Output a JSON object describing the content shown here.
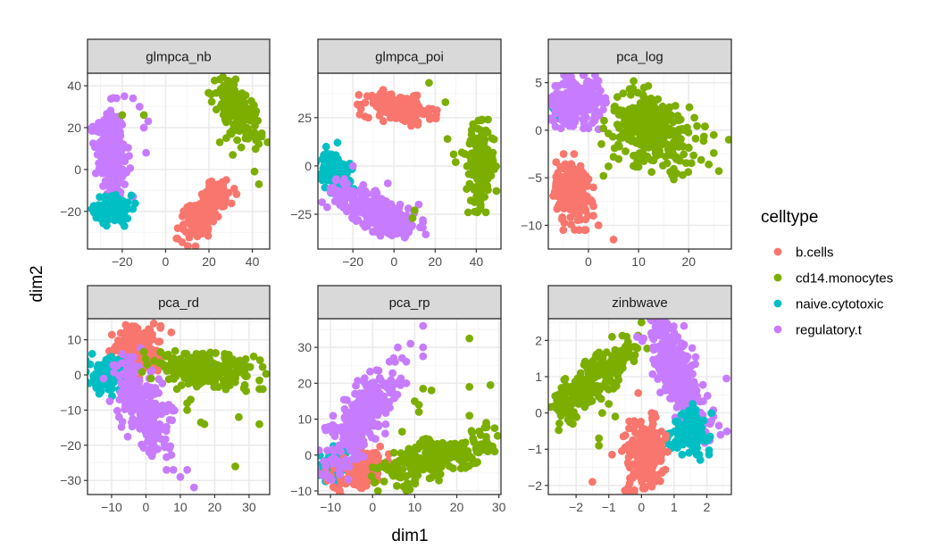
{
  "chart_data": {
    "type": "scatter",
    "layout": "facet-wrap 2x3",
    "xlabel": "dim1",
    "ylabel": "dim2",
    "legend": {
      "title": "celltype",
      "placement": "right",
      "entries": [
        {
          "label": "b.cells",
          "color": "#F8766D"
        },
        {
          "label": "cd14.monocytes",
          "color": "#7CAE00"
        },
        {
          "label": "naive.cytotoxic",
          "color": "#00BFC4"
        },
        {
          "label": "regulatory.t",
          "color": "#C77CFF"
        }
      ]
    },
    "grid": true,
    "panels": [
      {
        "title": "glmpca_nb",
        "xlim": [
          -36,
          48
        ],
        "ylim": [
          -38,
          46
        ],
        "xticks": [
          -20,
          0,
          20,
          40
        ],
        "yticks": [
          -20,
          0,
          20,
          40
        ],
        "clusters": [
          {
            "celltype": "regulatory.t",
            "center": [
              -25,
              8
            ],
            "spread": [
              4,
              13
            ],
            "angle": 5,
            "n": 260,
            "outliers": [
              [
                -15,
                34
              ],
              [
                -12,
                30
              ],
              [
                -8,
                23
              ],
              [
                -10,
                20
              ],
              [
                -9,
                8
              ],
              [
                -15,
                -13
              ],
              [
                -19,
                35
              ]
            ]
          },
          {
            "celltype": "naive.cytotoxic",
            "center": [
              -24,
              -19
            ],
            "spread": [
              5,
              4
            ],
            "angle": 0,
            "n": 90,
            "outliers": [
              [
                -19,
                -27
              ]
            ]
          },
          {
            "celltype": "b.cells",
            "center": [
              18,
              -20
            ],
            "spread": [
              4,
              9
            ],
            "angle": -35,
            "n": 200,
            "outliers": []
          },
          {
            "celltype": "cd14.monocytes",
            "center": [
              33,
              28
            ],
            "spread": [
              4,
              10
            ],
            "angle": 30,
            "n": 160,
            "outliers": [
              [
                25,
                13
              ],
              [
                28,
                15
              ],
              [
                31,
                7
              ],
              [
                33,
                14
              ],
              [
                41,
                -1
              ],
              [
                43,
                -7
              ],
              [
                -10,
                26
              ],
              [
                -20,
                26
              ]
            ]
          }
        ]
      },
      {
        "title": "glmpca_poi",
        "xlim": [
          -37,
          52
        ],
        "ylim": [
          -43,
          48
        ],
        "xticks": [
          -20,
          0,
          20,
          40
        ],
        "yticks": [
          -25,
          0,
          25
        ],
        "clusters": [
          {
            "celltype": "b.cells",
            "center": [
              2,
              30
            ],
            "spread": [
              10,
              4
            ],
            "angle": -10,
            "n": 180,
            "outliers": [
              [
                19,
                25
              ]
            ]
          },
          {
            "celltype": "naive.cytotoxic",
            "center": [
              -28,
              -3
            ],
            "spread": [
              4,
              7
            ],
            "angle": 20,
            "n": 100,
            "outliers": [
              [
                -33,
                10
              ]
            ]
          },
          {
            "celltype": "regulatory.t",
            "center": [
              -8,
              -24
            ],
            "spread": [
              13,
              5
            ],
            "angle": -30,
            "n": 280,
            "outliers": [
              [
                -3,
                -9
              ],
              [
                3,
                -20
              ],
              [
                7,
                -22
              ],
              [
                12,
                -20
              ],
              [
                14,
                -28
              ],
              [
                14,
                -32
              ],
              [
                -20,
                0
              ]
            ]
          },
          {
            "celltype": "cd14.monocytes",
            "center": [
              42,
              0
            ],
            "spread": [
              4,
              12
            ],
            "angle": 0,
            "n": 170,
            "outliers": [
              [
                17,
                43
              ],
              [
                25,
                33
              ],
              [
                26,
                14
              ],
              [
                29,
                6
              ],
              [
                30,
                2
              ],
              [
                33,
                7
              ],
              [
                10,
                -23
              ],
              [
                9,
                -27
              ]
            ]
          }
        ]
      },
      {
        "title": "pca_log",
        "xlim": [
          -8,
          28.5
        ],
        "ylim": [
          -12.5,
          6
        ],
        "xticks": [
          0,
          10,
          20
        ],
        "yticks": [
          -10,
          -5,
          0,
          5
        ],
        "clusters": [
          {
            "celltype": "naive.cytotoxic",
            "center": [
              -5.5,
              2.3
            ],
            "spread": [
              0.8,
              0.7
            ],
            "angle": 0,
            "n": 50,
            "outliers": []
          },
          {
            "celltype": "regulatory.t",
            "center": [
              -2.5,
              3
            ],
            "spread": [
              3,
              1.4
            ],
            "angle": 0,
            "n": 220,
            "outliers": [
              [
                0,
                0.2
              ],
              [
                2,
                0.1
              ],
              [
                2,
                5.2
              ],
              [
                3,
                2.8
              ]
            ]
          },
          {
            "celltype": "b.cells",
            "center": [
              -3,
              -6.5
            ],
            "spread": [
              2,
              2
            ],
            "angle": 0,
            "n": 200,
            "outliers": [
              [
                5,
                -11.5
              ],
              [
                2,
                -10
              ],
              [
                1,
                -9
              ]
            ]
          },
          {
            "celltype": "cd14.monocytes",
            "center": [
              13,
              0
            ],
            "spread": [
              5,
              2.2
            ],
            "angle": -10,
            "n": 300,
            "outliers": [
              [
                3,
                -4.8
              ],
              [
                4,
                -3.8
              ],
              [
                5,
                -2.8
              ],
              [
                25,
                -0.5
              ],
              [
                28,
                -1
              ],
              [
                25,
                -2.4
              ],
              [
                26,
                -4.3
              ],
              [
                24,
                -3.6
              ]
            ]
          }
        ]
      },
      {
        "title": "pca_rd",
        "xlim": [
          -17,
          36
        ],
        "ylim": [
          -34,
          16
        ],
        "xticks": [
          -10,
          0,
          10,
          20,
          30
        ],
        "yticks": [
          -30,
          -20,
          -10,
          0,
          10
        ],
        "clusters": [
          {
            "celltype": "b.cells",
            "center": [
              -3,
              7
            ],
            "spread": [
              4,
              4.5
            ],
            "angle": -20,
            "n": 170,
            "outliers": [
              [
                4,
                9.5
              ]
            ]
          },
          {
            "celltype": "naive.cytotoxic",
            "center": [
              -11,
              0
            ],
            "spread": [
              3.5,
              3
            ],
            "angle": 0,
            "n": 110,
            "outliers": []
          },
          {
            "celltype": "regulatory.t",
            "center": [
              -1,
              -9
            ],
            "spread": [
              4,
              8
            ],
            "angle": 25,
            "n": 260,
            "outliers": [
              [
                6,
                -27
              ],
              [
                8,
                -27
              ],
              [
                12,
                -27
              ],
              [
                10,
                -29
              ],
              [
                14,
                -32
              ],
              [
                2,
                -22
              ],
              [
                1,
                -1
              ]
            ]
          },
          {
            "celltype": "cd14.monocytes",
            "center": [
              17,
              1.5
            ],
            "spread": [
              9,
              2.5
            ],
            "angle": -5,
            "n": 240,
            "outliers": [
              [
                9,
                -4
              ],
              [
                12,
                -8
              ],
              [
                13,
                -7
              ],
              [
                12,
                -10
              ],
              [
                16,
                -13.5
              ],
              [
                17,
                -14
              ],
              [
                27,
                -12
              ],
              [
                33,
                -14
              ],
              [
                33,
                -4
              ],
              [
                34,
                -4
              ],
              [
                29,
                4.5
              ],
              [
                26,
                -26
              ]
            ]
          }
        ]
      },
      {
        "title": "pca_rp",
        "xlim": [
          -13,
          30.5
        ],
        "ylim": [
          -11,
          38
        ],
        "xticks": [
          -10,
          0,
          10,
          20,
          30
        ],
        "yticks": [
          -10,
          0,
          10,
          20,
          30
        ],
        "clusters": [
          {
            "celltype": "naive.cytotoxic",
            "center": [
              -9,
              -2.5
            ],
            "spread": [
              2.3,
              2.5
            ],
            "angle": 0,
            "n": 100,
            "outliers": []
          },
          {
            "celltype": "b.cells",
            "center": [
              -3,
              -4
            ],
            "spread": [
              4,
              2.5
            ],
            "angle": 40,
            "n": 160,
            "outliers": []
          },
          {
            "celltype": "regulatory.t",
            "center": [
              -3,
              10
            ],
            "spread": [
              3,
              9
            ],
            "angle": -30,
            "n": 280,
            "outliers": [
              [
                12,
                36
              ],
              [
                9,
                31
              ],
              [
                6,
                30
              ],
              [
                12,
                30
              ],
              [
                12,
                27.5
              ],
              [
                7,
                27
              ],
              [
                8,
                26
              ],
              [
                5,
                27
              ],
              [
                4,
                26
              ],
              [
                8,
                20
              ],
              [
                3,
                6
              ]
            ]
          },
          {
            "celltype": "cd14.monocytes",
            "center": [
              15,
              -1
            ],
            "spread": [
              8,
              3
            ],
            "angle": 20,
            "n": 260,
            "outliers": [
              [
                23,
                32.5
              ],
              [
                28,
                19.5
              ],
              [
                23,
                19
              ],
              [
                12,
                18.5
              ],
              [
                14,
                18
              ],
              [
                10,
                15
              ],
              [
                11,
                14
              ],
              [
                11,
                12
              ],
              [
                7,
                6.5
              ],
              [
                23,
                11
              ],
              [
                27,
                9
              ],
              [
                29,
                7.5
              ],
              [
                26,
                3
              ],
              [
                22,
                0
              ]
            ]
          }
        ]
      },
      {
        "title": "zinbwave",
        "xlim": [
          -2.85,
          2.75
        ],
        "ylim": [
          -2.25,
          2.6
        ],
        "xticks": [
          -2,
          -1,
          0,
          1,
          2
        ],
        "yticks": [
          -2,
          -1,
          0,
          1,
          2
        ],
        "clusters": [
          {
            "celltype": "cd14.monocytes",
            "center": [
              -1.6,
              0.8
            ],
            "spread": [
              1,
              0.28
            ],
            "angle": 38,
            "n": 260,
            "outliers": [
              [
                -0.9,
                2.1
              ],
              [
                -0.8,
                1.3
              ],
              [
                -1.0,
                0.25
              ],
              [
                -1.2,
                0
              ],
              [
                -0.8,
                -0.1
              ],
              [
                -1.3,
                -0.9
              ],
              [
                -1.3,
                -0.7
              ],
              [
                -0.4,
                1.6
              ],
              [
                -0.2,
                1.6
              ],
              [
                0,
                2.5
              ]
            ]
          },
          {
            "celltype": "regulatory.t",
            "center": [
              1.1,
              1.1
            ],
            "spread": [
              0.35,
              1.05
            ],
            "angle": 25,
            "n": 300,
            "outliers": [
              [
                0.3,
                2.2
              ],
              [
                1.3,
                2.4
              ],
              [
                2.6,
                0.95
              ],
              [
                2.2,
                -0.1
              ],
              [
                2.1,
                -0.3
              ]
            ]
          },
          {
            "celltype": "naive.cytotoxic",
            "center": [
              1.5,
              -0.45
            ],
            "spread": [
              0.35,
              0.35
            ],
            "angle": 0,
            "n": 110,
            "outliers": [
              [
                1.8,
                -1.3
              ],
              [
                2.1,
                -0.65
              ]
            ]
          },
          {
            "celltype": "b.cells",
            "center": [
              0.1,
              -1.2
            ],
            "spread": [
              0.35,
              0.6
            ],
            "angle": 0,
            "n": 200,
            "outliers": [
              [
                -0.1,
                0.55
              ],
              [
                -1.5,
                -1.9
              ],
              [
                -0.9,
                -1.15
              ],
              [
                -0.4,
                -2.05
              ],
              [
                -0.35,
                -2.2
              ]
            ]
          }
        ]
      }
    ]
  }
}
